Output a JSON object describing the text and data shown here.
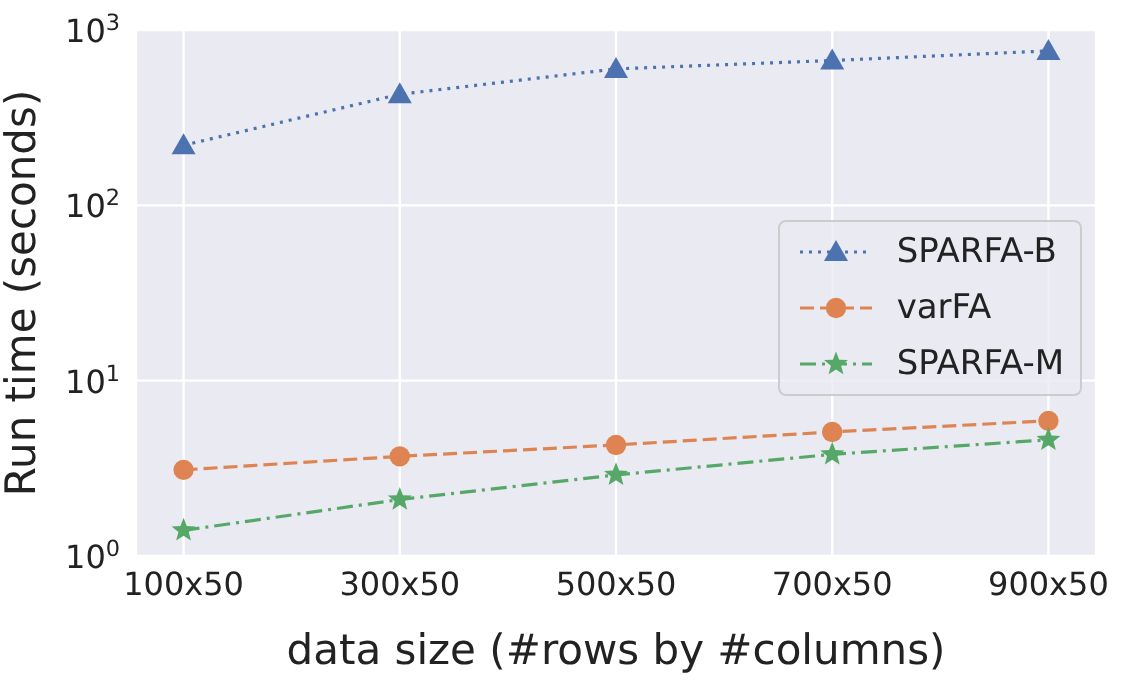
{
  "chart_data": {
    "type": "line",
    "xlabel": "data size (#rows by #columns)",
    "ylabel": "Run time (seconds)",
    "categories": [
      "100x50",
      "300x50",
      "500x50",
      "700x50",
      "900x50"
    ],
    "log": "y",
    "ylim": [
      1,
      1000
    ],
    "yticks": [
      {
        "value": 1,
        "label": "10$^{0}$"
      },
      {
        "value": 10,
        "label": "10$^{1}$"
      },
      {
        "value": 100,
        "label": "10$^{2}$"
      },
      {
        "value": 1000,
        "label": "10$^{3}$"
      }
    ],
    "grid": true,
    "legend": "right",
    "series": [
      {
        "name": "SPARFA-B",
        "color": "#4c72b0",
        "marker": "triangle",
        "line_style": "dotted",
        "values": [
          220,
          430,
          600,
          670,
          760
        ]
      },
      {
        "name": "varFA",
        "color": "#dd8452",
        "marker": "circle",
        "line_style": "dashed",
        "values": [
          3.1,
          3.7,
          4.3,
          5.1,
          5.9
        ]
      },
      {
        "name": "SPARFA-M",
        "color": "#55a868",
        "marker": "star",
        "line_style": "dashdot",
        "values": [
          1.4,
          2.1,
          2.9,
          3.8,
          4.6
        ]
      }
    ]
  }
}
